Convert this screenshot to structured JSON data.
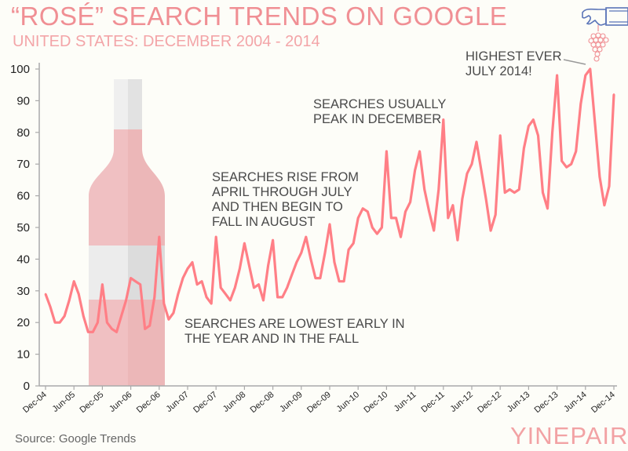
{
  "title": "“ROSÉ” SEARCH TRENDS ON GOOGLE",
  "subtitle": "UNITED STATES: DECEMBER 2004 - 2014",
  "source": "Source: Google Trends",
  "brand": "YINEPAIR",
  "logo_icon": "hand-holding-grapes-icon",
  "colors": {
    "line": "#ff7f86",
    "title": "#f08f94",
    "bottle": "#f0bcbe",
    "axis": "#aaaaaa"
  },
  "chart_data": {
    "type": "line",
    "title": "“ROSÉ” SEARCH TRENDS ON GOOGLE",
    "xlabel": "",
    "ylabel": "",
    "ylim": [
      0,
      100
    ],
    "yticks": [
      "0",
      "10",
      "20",
      "30",
      "40",
      "50",
      "60",
      "70",
      "80",
      "90",
      "100"
    ],
    "x_start": "Dec-04",
    "x_end": "Dec-14",
    "x_interval": "monthly",
    "xticks": [
      "Dec-04",
      "Jun-05",
      "Dec-05",
      "Jun-06",
      "Dec-06",
      "Jun-07",
      "Dec-07",
      "Jun-08",
      "Dec-08",
      "Jun-09",
      "Dec-09",
      "Jun-10",
      "Dec-10",
      "Jun-11",
      "Dec-11",
      "Jun-12",
      "Dec-12",
      "Jun-13",
      "Dec-13",
      "Jun-14",
      "Dec-14"
    ],
    "grid": false,
    "values": [
      29,
      25,
      20,
      20,
      22,
      27,
      33,
      29,
      22,
      17,
      17,
      20,
      32,
      20,
      18,
      17,
      22,
      27,
      34,
      33,
      32,
      18,
      19,
      28,
      47,
      26,
      21,
      23,
      29,
      34,
      37,
      39,
      32,
      33,
      28,
      26,
      47,
      31,
      29,
      27,
      31,
      37,
      45,
      38,
      31,
      32,
      27,
      38,
      46,
      28,
      28,
      31,
      35,
      39,
      42,
      47,
      40,
      34,
      34,
      42,
      51,
      39,
      33,
      33,
      43,
      45,
      53,
      56,
      55,
      50,
      48,
      50,
      74,
      53,
      53,
      47,
      55,
      58,
      68,
      74,
      62,
      55,
      49,
      62,
      84,
      53,
      57,
      46,
      59,
      67,
      70,
      77,
      68,
      59,
      49,
      54,
      79,
      61,
      62,
      61,
      62,
      75,
      82,
      84,
      79,
      61,
      56,
      80,
      98,
      71,
      69,
      70,
      74,
      89,
      98,
      100,
      83,
      66,
      57,
      63,
      92
    ],
    "annotations": [
      {
        "lines": [
          "SEARCHES ARE LOWEST EARLY IN",
          "THE YEAR AND IN THE FALL"
        ]
      },
      {
        "lines": [
          "SEARCHES RISE FROM",
          "APRIL THROUGH JULY",
          "AND THEN BEGIN TO",
          "FALL IN AUGUST"
        ]
      },
      {
        "lines": [
          "SEARCHES USUALLY",
          "PEAK IN DECEMBER"
        ]
      },
      {
        "lines": [
          "HIGHEST EVER",
          "JULY 2014!"
        ]
      }
    ]
  }
}
